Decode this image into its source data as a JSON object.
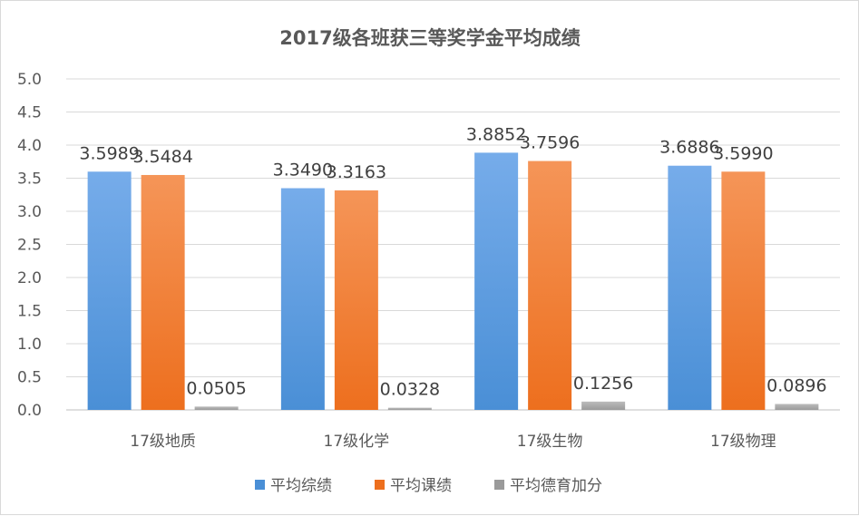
{
  "chart_data": {
    "type": "bar",
    "title": "2017级各班获三等奖学金平均成绩",
    "xlabel": "",
    "ylabel": "",
    "ylim": [
      0,
      5
    ],
    "ytick_step": 0.5,
    "grid": true,
    "legend_position": "bottom",
    "categories": [
      "17级地质",
      "17级化学",
      "17级生物",
      "17级物理"
    ],
    "series": [
      {
        "name": "平均综绩",
        "values": [
          3.5989,
          3.349,
          3.8852,
          3.6886
        ],
        "labels": [
          "3.5989",
          "3.3490",
          "3.8852",
          "3.6886"
        ],
        "color": "#4a8fd6",
        "color_light": "#76acea"
      },
      {
        "name": "平均课绩",
        "values": [
          3.5484,
          3.3163,
          3.7596,
          3.599
        ],
        "labels": [
          "3.5484",
          "3.3163",
          "3.7596",
          "3.5990"
        ],
        "color": "#ed6f1e",
        "color_light": "#f59558"
      },
      {
        "name": "平均德育加分",
        "values": [
          0.0505,
          0.0328,
          0.1256,
          0.0896
        ],
        "labels": [
          "0.0505",
          "0.0328",
          "0.1256",
          "0.0896"
        ],
        "color": "#9a9a9a",
        "color_light": "#bcbcbc"
      }
    ]
  }
}
